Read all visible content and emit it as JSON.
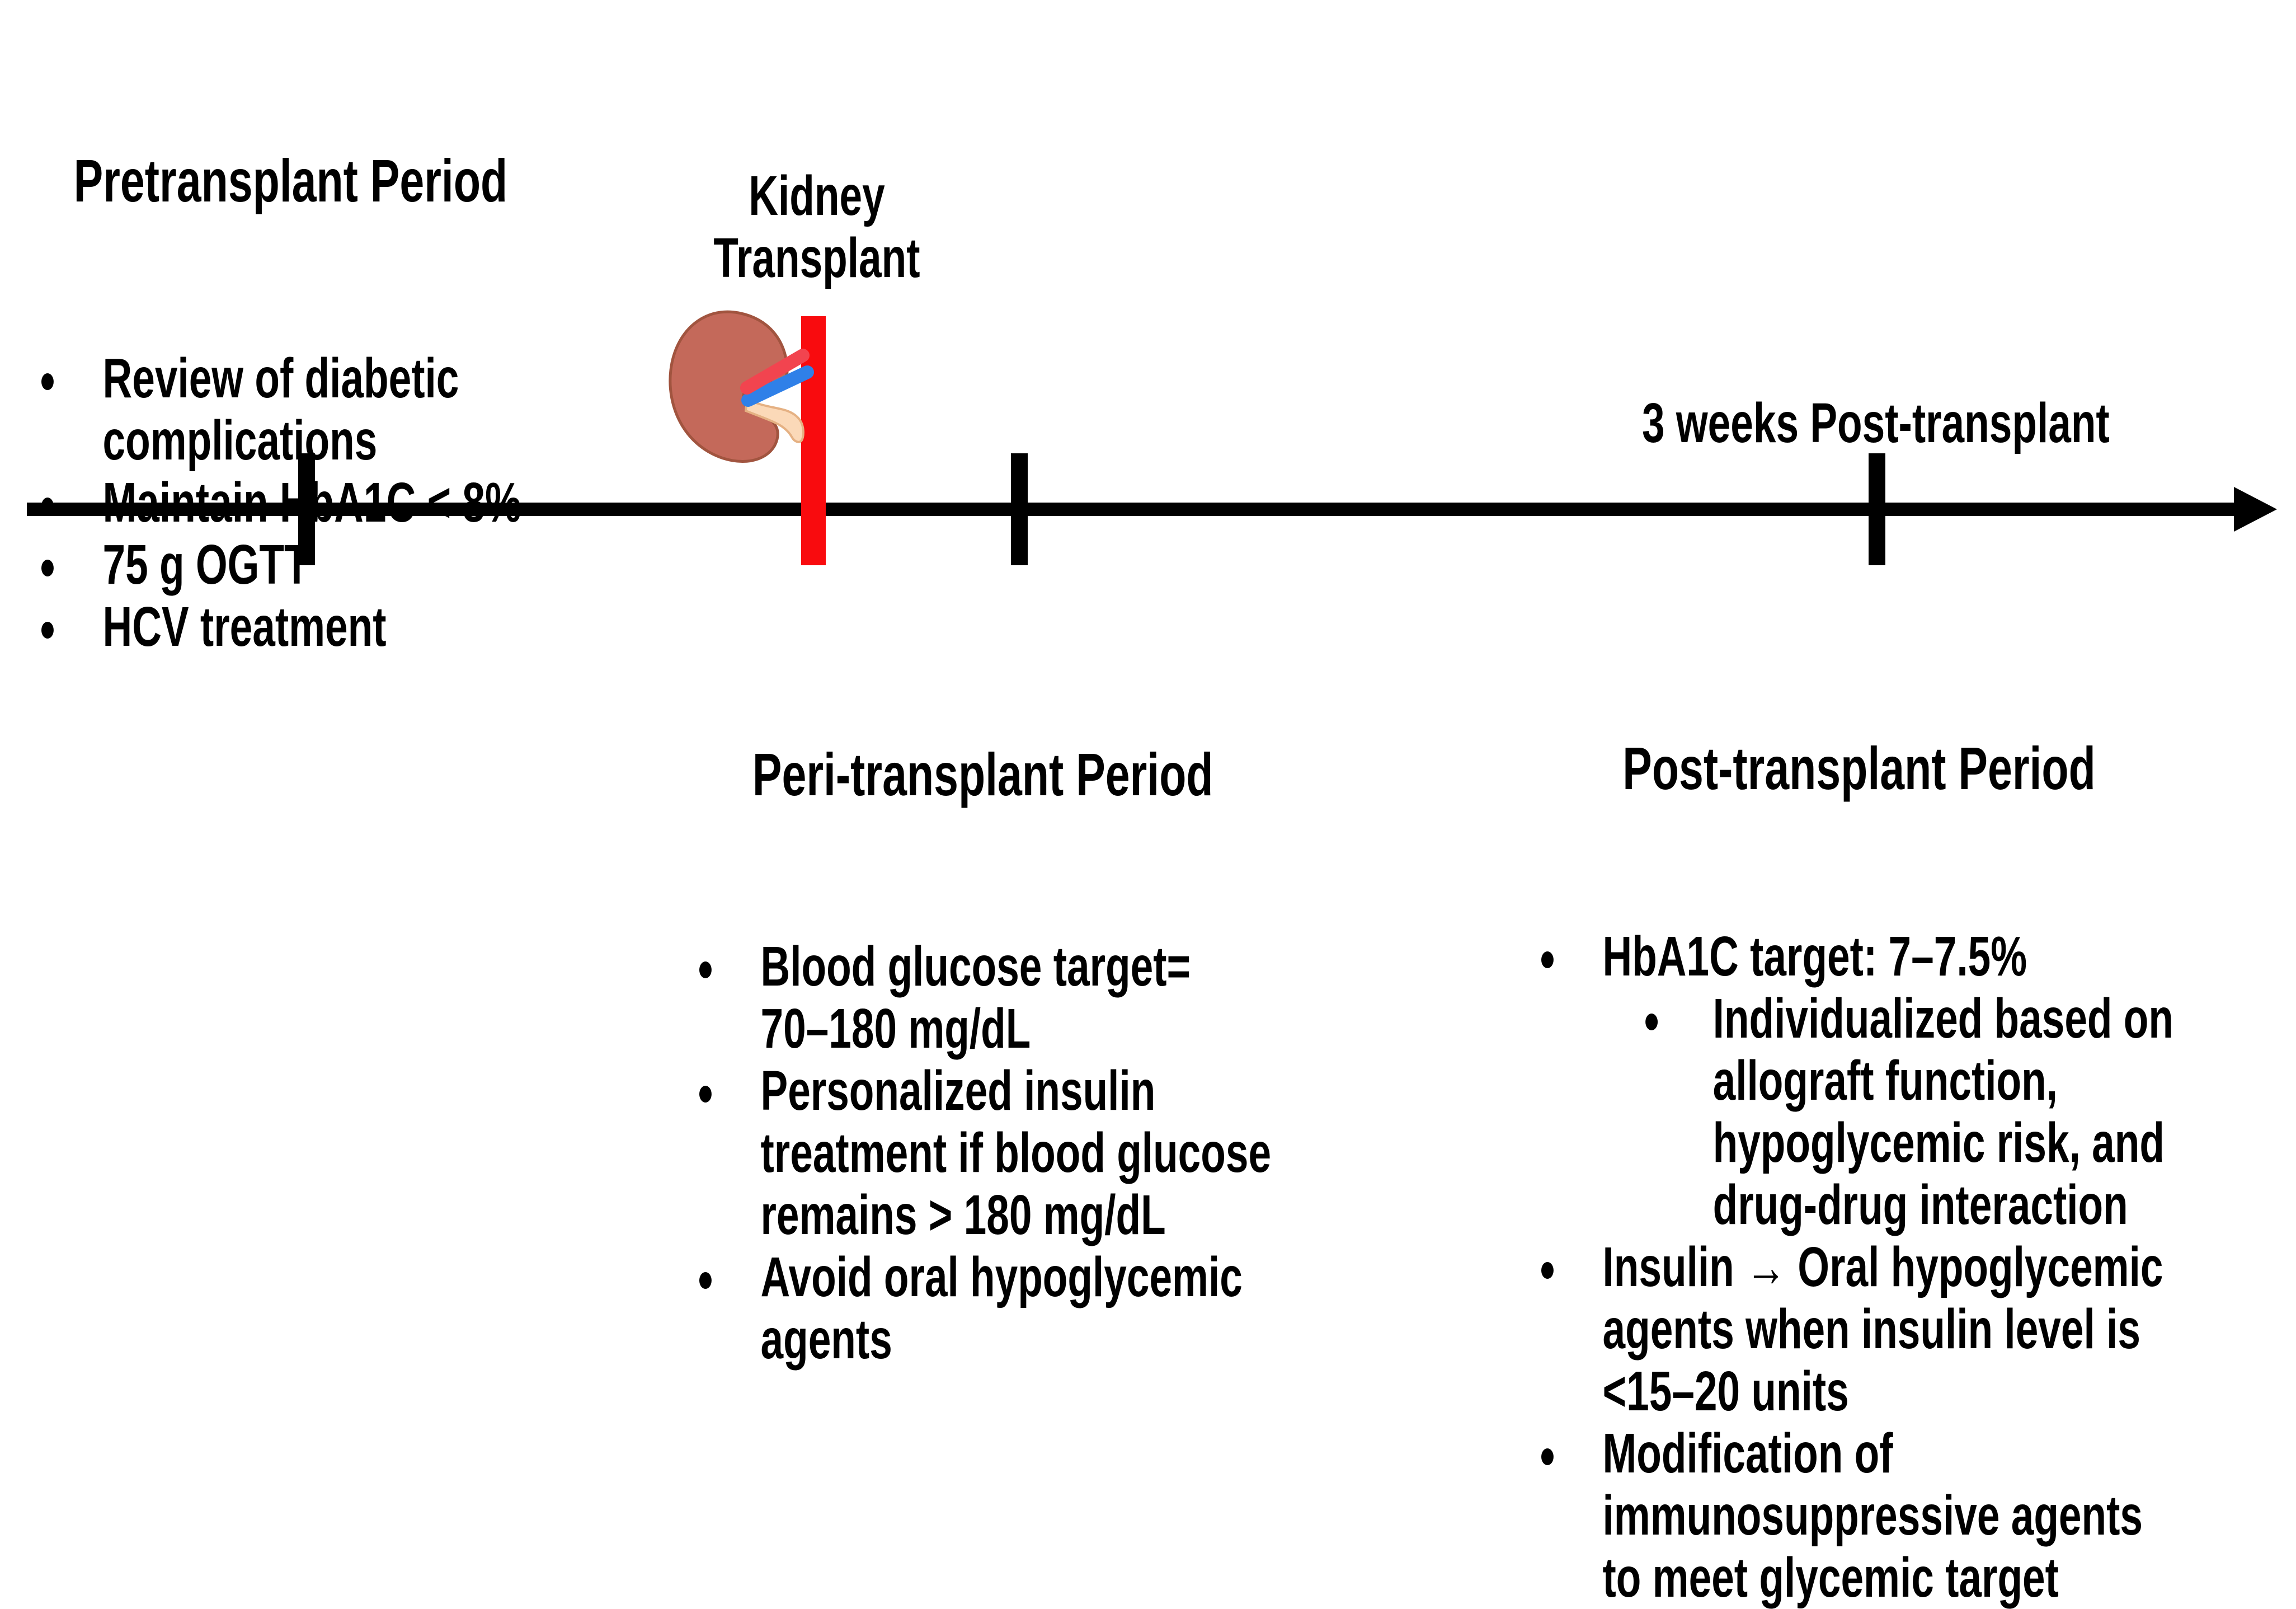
{
  "figure": {
    "description": "Kidney transplant glycemic management timeline",
    "labels": {
      "kidney_transplant": [
        "Kidney",
        "Transplant"
      ],
      "three_weeks": "3 weeks Post-transplant"
    },
    "sections": [
      {
        "id": "pretransplant",
        "title": "Pretransplant Period",
        "bullets": [
          {
            "level": 1,
            "lines": [
              "Review of diabetic",
              "complications"
            ]
          },
          {
            "level": 1,
            "lines": [
              "Maintain HbA1C < 8%"
            ]
          },
          {
            "level": 1,
            "lines": [
              "75 g OGTT"
            ]
          },
          {
            "level": 1,
            "lines": [
              "HCV treatment"
            ]
          }
        ]
      },
      {
        "id": "peritransplant",
        "title": "Peri-transplant Period",
        "bullets": [
          {
            "level": 1,
            "lines": [
              "Blood glucose target=",
              "70–180 mg/dL"
            ]
          },
          {
            "level": 1,
            "lines": [
              "Personalized insulin",
              "treatment if blood glucose",
              "remains > 180 mg/dL"
            ]
          },
          {
            "level": 1,
            "lines": [
              "Avoid oral hypoglycemic",
              "agents"
            ]
          }
        ]
      },
      {
        "id": "posttransplant",
        "title": "Post-transplant Period",
        "bullets": [
          {
            "level": 1,
            "lines": [
              "HbA1C target: 7–7.5%"
            ]
          },
          {
            "level": 2,
            "lines": [
              "Individualized based on",
              "allograft function,",
              "hypoglycemic risk, and",
              "drug-drug interaction"
            ]
          },
          {
            "level": 1,
            "lines": [
              "Insulin → Oral hypoglycemic",
              "agents when insulin level is",
              "<15–20 units"
            ]
          },
          {
            "level": 1,
            "lines": [
              "Modification of",
              "immunosuppressive agents",
              "to meet glycemic target"
            ]
          }
        ]
      }
    ],
    "icons": {
      "kidney_icon": "kidney-illustration"
    },
    "colors": {
      "timeline_black": "#000000",
      "text_black": "#000000",
      "event_marker_red": "#f90b0e",
      "kidney_body": "#c4695a",
      "kidney_outline": "#a1543f",
      "renal_artery_red": "#f2444f",
      "renal_vein_blue": "#2f80e8",
      "ureter_cream": "#fbd9b8",
      "ureter_outline": "#e5b183"
    }
  }
}
